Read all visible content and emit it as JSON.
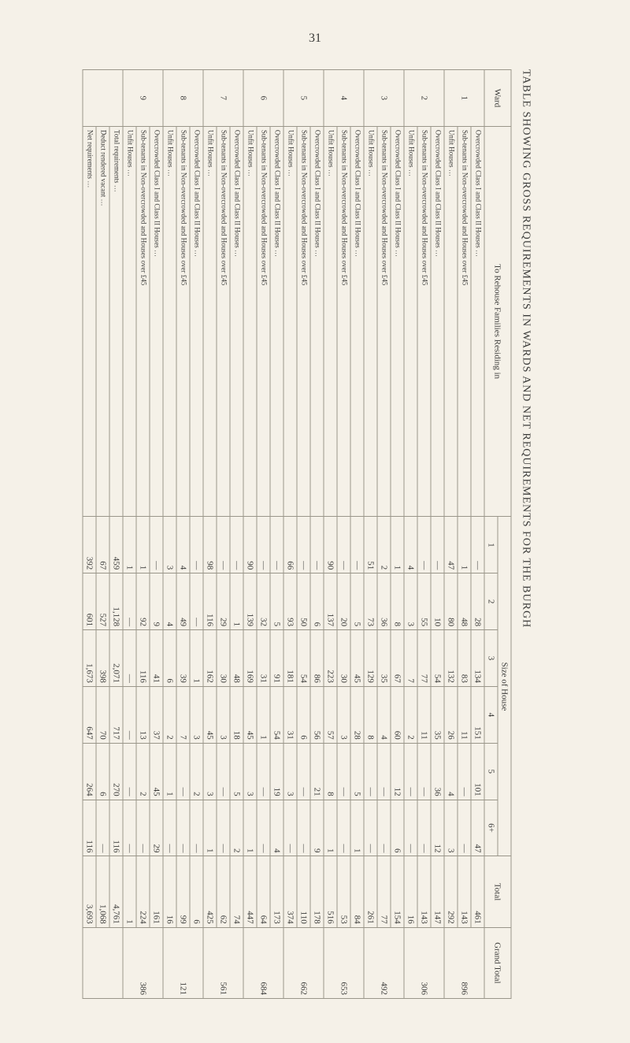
{
  "page_number": "31",
  "caption": "TABLE SHOWING GROSS REQUIREMENTS IN WARDS AND NET REQUIREMENTS FOR THE BURGH",
  "headers": {
    "ward": "Ward",
    "residing": "To Rehouse Families Residing in",
    "size": "Size of House",
    "total": "Total",
    "grand": "Grand Total",
    "cols": [
      "1",
      "2",
      "3",
      "4",
      "5",
      "6+"
    ]
  },
  "row_labels": {
    "over": "Overcrowded Class I and Class II Houses …",
    "sub": "Sub-tenants in Non-overcrowded and Houses over £45",
    "unfit": "Unfit Houses …",
    "total_req": "Total requirements …",
    "deduct": "Deduct rendered vacant …",
    "net": "Net requirements …"
  },
  "wards": [
    {
      "n": "1",
      "rows": [
        {
          "k": "over",
          "v": [
            "—",
            "28",
            "134",
            "151",
            "101",
            "47",
            "461"
          ]
        },
        {
          "k": "sub",
          "v": [
            "1",
            "48",
            "83",
            "11",
            "—",
            "—",
            "143"
          ]
        },
        {
          "k": "unfit",
          "v": [
            "47",
            "80",
            "132",
            "26",
            "4",
            "3",
            "292"
          ]
        }
      ],
      "gt": "896"
    },
    {
      "n": "2",
      "rows": [
        {
          "k": "over",
          "v": [
            "—",
            "10",
            "54",
            "35",
            "36",
            "12",
            "147"
          ]
        },
        {
          "k": "sub",
          "v": [
            "—",
            "55",
            "77",
            "11",
            "—",
            "—",
            "143"
          ]
        },
        {
          "k": "unfit",
          "v": [
            "4",
            "3",
            "7",
            "2",
            "—",
            "—",
            "16"
          ]
        }
      ],
      "gt": "306"
    },
    {
      "n": "3",
      "rows": [
        {
          "k": "over",
          "v": [
            "1",
            "8",
            "67",
            "60",
            "12",
            "6",
            "154"
          ]
        },
        {
          "k": "sub",
          "v": [
            "2",
            "36",
            "35",
            "4",
            "—",
            "—",
            "77"
          ]
        },
        {
          "k": "unfit",
          "v": [
            "51",
            "73",
            "129",
            "8",
            "—",
            "—",
            "261"
          ]
        }
      ],
      "gt": "492"
    },
    {
      "n": "4",
      "rows": [
        {
          "k": "over",
          "v": [
            "—",
            "5",
            "45",
            "28",
            "5",
            "1",
            "84"
          ]
        },
        {
          "k": "sub",
          "v": [
            "—",
            "20",
            "30",
            "3",
            "—",
            "—",
            "53"
          ]
        },
        {
          "k": "unfit",
          "v": [
            "90",
            "137",
            "223",
            "57",
            "8",
            "1",
            "516"
          ]
        }
      ],
      "gt": "653"
    },
    {
      "n": "5",
      "rows": [
        {
          "k": "over",
          "v": [
            "—",
            "6",
            "86",
            "56",
            "21",
            "9",
            "178"
          ]
        },
        {
          "k": "sub",
          "v": [
            "—",
            "50",
            "54",
            "6",
            "—",
            "—",
            "110"
          ]
        },
        {
          "k": "unfit",
          "v": [
            "66",
            "93",
            "181",
            "31",
            "3",
            "—",
            "374"
          ]
        }
      ],
      "gt": "662"
    },
    {
      "n": "6",
      "rows": [
        {
          "k": "over",
          "v": [
            "—",
            "5",
            "91",
            "54",
            "19",
            "4",
            "173"
          ]
        },
        {
          "k": "sub",
          "v": [
            "—",
            "32",
            "31",
            "1",
            "—",
            "—",
            "64"
          ]
        },
        {
          "k": "unfit",
          "v": [
            "90",
            "139",
            "169",
            "45",
            "3",
            "1",
            "447"
          ]
        }
      ],
      "gt": "684"
    },
    {
      "n": "7",
      "rows": [
        {
          "k": "over",
          "v": [
            "—",
            "1",
            "48",
            "18",
            "5",
            "2",
            "74"
          ]
        },
        {
          "k": "sub",
          "v": [
            "—",
            "29",
            "30",
            "3",
            "—",
            "—",
            "62"
          ]
        },
        {
          "k": "unfit",
          "v": [
            "98",
            "116",
            "162",
            "45",
            "3",
            "1",
            "425"
          ]
        }
      ],
      "gt": "561"
    },
    {
      "n": "8",
      "rows": [
        {
          "k": "over",
          "v": [
            "—",
            "—",
            "1",
            "3",
            "2",
            "—",
            "6"
          ]
        },
        {
          "k": "sub",
          "v": [
            "4",
            "49",
            "39",
            "7",
            "—",
            "—",
            "99"
          ]
        },
        {
          "k": "unfit",
          "v": [
            "3",
            "4",
            "6",
            "2",
            "1",
            "—",
            "16"
          ]
        }
      ],
      "gt": "121"
    },
    {
      "n": "9",
      "rows": [
        {
          "k": "over",
          "v": [
            "—",
            "9",
            "41",
            "37",
            "45",
            "29",
            "161"
          ]
        },
        {
          "k": "sub",
          "v": [
            "1",
            "92",
            "116",
            "13",
            "2",
            "—",
            "224"
          ]
        },
        {
          "k": "unfit",
          "v": [
            "1",
            "—",
            "—",
            "—",
            "—",
            "—",
            "1"
          ]
        }
      ],
      "gt": "386"
    }
  ],
  "totals": {
    "total_req": [
      "459",
      "1,128",
      "2,071",
      "717",
      "270",
      "116",
      "4,761"
    ],
    "deduct": [
      "67",
      "527",
      "398",
      "70",
      "6",
      "—",
      "1,068"
    ],
    "net": [
      "392",
      "601",
      "1,673",
      "647",
      "264",
      "116",
      "3,693"
    ]
  }
}
